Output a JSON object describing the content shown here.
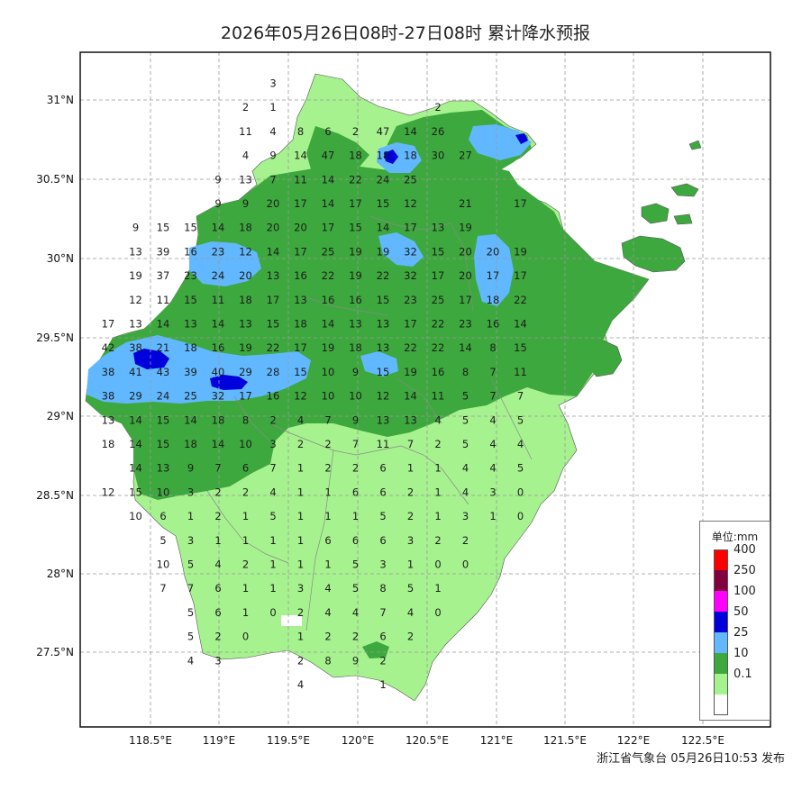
{
  "title": "2026年05月26日08时-27日08时 累计降水预报",
  "footer": "浙江省气象台 05月26日10:53 发布",
  "axes": {
    "lat_labels": [
      "31°N",
      "30.5°N",
      "30°N",
      "29.5°N",
      "29°N",
      "28.5°N",
      "28°N",
      "27.5°N"
    ],
    "lon_labels": [
      "118.5°E",
      "119°E",
      "119.5°E",
      "120°E",
      "120.5°E",
      "121°E",
      "121.5°E",
      "122°E",
      "122.5°E"
    ]
  },
  "legend": {
    "title": "单位:mm",
    "levels": [
      {
        "label": "400",
        "color": "#ff0000"
      },
      {
        "label": "250",
        "color": "#800040"
      },
      {
        "label": "100",
        "color": "#ff00ff"
      },
      {
        "label": "50",
        "color": "#0000dd"
      },
      {
        "label": "25",
        "color": "#61b8ff"
      },
      {
        "label": "10",
        "color": "#3da83d"
      },
      {
        "label": "0.1",
        "color": "#a6f28f"
      },
      {
        "label": "",
        "color": "#ffffff"
      }
    ]
  },
  "grid_values": [
    [
      "",
      "",
      "",
      "",
      "",
      "",
      "3",
      "",
      "",
      "",
      "",
      "",
      "",
      "",
      "",
      ""
    ],
    [
      "",
      "",
      "",
      "",
      "",
      "2",
      "1",
      "",
      "",
      "",
      "",
      "",
      "2",
      "",
      "",
      ""
    ],
    [
      "",
      "",
      "",
      "",
      "",
      "11",
      "4",
      "8",
      "6",
      "2",
      "47",
      "14",
      "26",
      "",
      "",
      ""
    ],
    [
      "",
      "",
      "",
      "",
      "",
      "4",
      "9",
      "14",
      "47",
      "18",
      "18",
      "18",
      "30",
      "27",
      "",
      ""
    ],
    [
      "",
      "",
      "",
      "",
      "9",
      "13",
      "7",
      "11",
      "14",
      "22",
      "24",
      "25",
      "",
      "",
      "",
      ""
    ],
    [
      "",
      "",
      "",
      "",
      "9",
      "9",
      "20",
      "17",
      "14",
      "17",
      "15",
      "12",
      "",
      "21",
      "",
      "17"
    ],
    [
      "",
      "9",
      "15",
      "15",
      "14",
      "18",
      "20",
      "20",
      "17",
      "15",
      "14",
      "17",
      "13",
      "19",
      "",
      ""
    ],
    [
      "",
      "13",
      "39",
      "16",
      "23",
      "12",
      "14",
      "17",
      "25",
      "19",
      "19",
      "32",
      "15",
      "20",
      "20",
      "19"
    ],
    [
      "",
      "19",
      "37",
      "23",
      "24",
      "20",
      "13",
      "16",
      "22",
      "19",
      "22",
      "32",
      "17",
      "20",
      "17",
      "17"
    ],
    [
      "",
      "12",
      "11",
      "15",
      "11",
      "18",
      "17",
      "13",
      "16",
      "16",
      "15",
      "23",
      "25",
      "17",
      "18",
      "22"
    ],
    [
      "17",
      "13",
      "14",
      "13",
      "14",
      "13",
      "15",
      "18",
      "14",
      "13",
      "13",
      "17",
      "22",
      "23",
      "16",
      "14"
    ],
    [
      "42",
      "38",
      "21",
      "18",
      "16",
      "19",
      "22",
      "17",
      "19",
      "18",
      "13",
      "22",
      "22",
      "14",
      "8",
      "15"
    ],
    [
      "38",
      "41",
      "43",
      "39",
      "40",
      "29",
      "28",
      "15",
      "10",
      "9",
      "15",
      "19",
      "16",
      "8",
      "7",
      "11"
    ],
    [
      "38",
      "29",
      "24",
      "25",
      "32",
      "17",
      "16",
      "12",
      "10",
      "10",
      "12",
      "14",
      "11",
      "5",
      "7",
      "7"
    ],
    [
      "13",
      "14",
      "15",
      "14",
      "18",
      "8",
      "2",
      "4",
      "7",
      "9",
      "13",
      "13",
      "4",
      "5",
      "4",
      "5"
    ],
    [
      "18",
      "14",
      "15",
      "18",
      "14",
      "10",
      "3",
      "2",
      "2",
      "7",
      "11",
      "7",
      "2",
      "5",
      "4",
      "4"
    ],
    [
      "",
      "14",
      "13",
      "9",
      "7",
      "6",
      "7",
      "1",
      "2",
      "2",
      "6",
      "1",
      "1",
      "4",
      "4",
      "5"
    ],
    [
      "12",
      "15",
      "10",
      "3",
      "2",
      "2",
      "4",
      "1",
      "1",
      "6",
      "6",
      "2",
      "1",
      "4",
      "3",
      "0"
    ],
    [
      "",
      "10",
      "6",
      "1",
      "2",
      "1",
      "5",
      "1",
      "1",
      "1",
      "5",
      "2",
      "1",
      "3",
      "1",
      "0"
    ],
    [
      "",
      "",
      "5",
      "3",
      "1",
      "1",
      "1",
      "1",
      "6",
      "6",
      "6",
      "3",
      "2",
      "2",
      "",
      ""
    ],
    [
      "",
      "",
      "10",
      "5",
      "4",
      "2",
      "1",
      "1",
      "1",
      "5",
      "3",
      "1",
      "0",
      "0",
      "",
      ""
    ],
    [
      "",
      "",
      "7",
      "7",
      "6",
      "1",
      "1",
      "3",
      "4",
      "5",
      "8",
      "5",
      "1",
      "",
      "",
      ""
    ],
    [
      "",
      "",
      "",
      "5",
      "6",
      "1",
      "0",
      "2",
      "4",
      "4",
      "7",
      "4",
      "0",
      "",
      "",
      ""
    ],
    [
      "",
      "",
      "",
      "5",
      "2",
      "0",
      "",
      "1",
      "2",
      "2",
      "6",
      "2",
      "",
      "",
      "",
      ""
    ],
    [
      "",
      "",
      "",
      "4",
      "3",
      "",
      "",
      "2",
      "8",
      "9",
      "2",
      "",
      "",
      "",
      "",
      ""
    ],
    [
      "",
      "",
      "",
      "",
      "",
      "",
      "",
      "4",
      "",
      "",
      "1",
      "",
      "",
      "",
      "",
      ""
    ]
  ]
}
